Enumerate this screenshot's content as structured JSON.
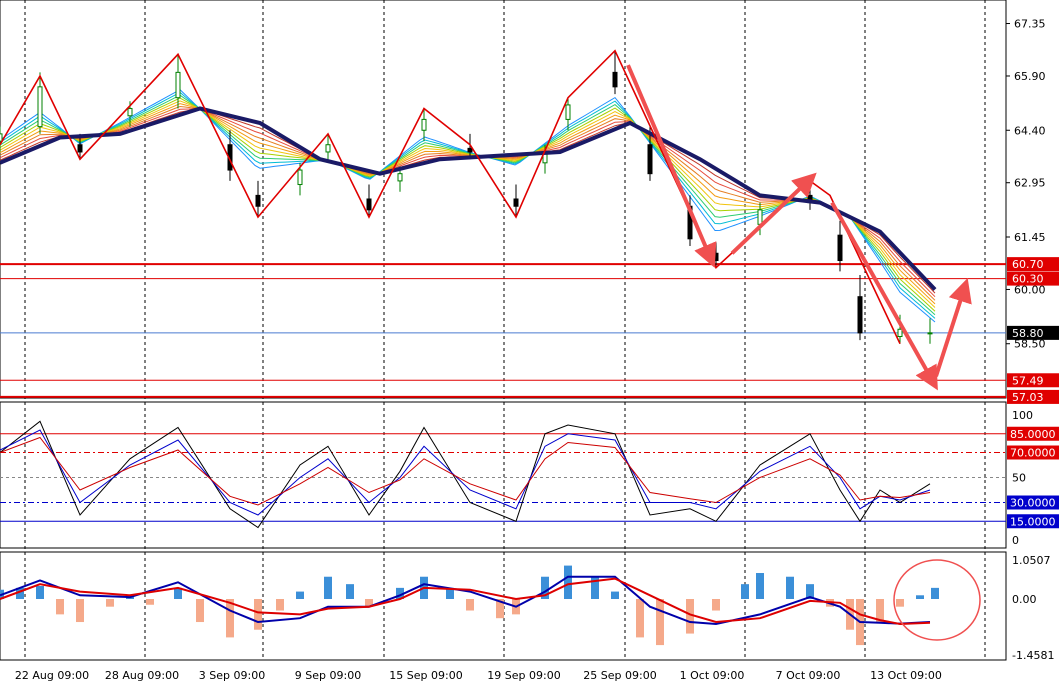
{
  "chart_data": [
    {
      "type": "candlestick",
      "panel": "price",
      "title": "",
      "ylim": [
        57.0,
        68.0
      ],
      "y_ticks": [
        "67.35",
        "65.90",
        "64.40",
        "62.95",
        "61.45",
        "60.00",
        "58.50"
      ],
      "x_labels": [
        "22 Aug 09:00",
        "28 Aug 09:00",
        "3 Sep 09:00",
        "9 Sep 09:00",
        "15 Sep 09:00",
        "19 Sep 09:00",
        "25 Sep 09:00",
        "1 Oct 09:00",
        "7 Oct 09:00",
        "13 Oct 09:00"
      ],
      "current_price": {
        "value": 58.8,
        "label": "58.80"
      },
      "levels": [
        {
          "value": 60.7,
          "label": "60.70"
        },
        {
          "value": 60.3,
          "label": "60.30"
        },
        {
          "value": 57.49,
          "label": "57.49"
        },
        {
          "value": 57.03,
          "label": "57.03"
        }
      ],
      "zigzag": [
        [
          0,
          64.0
        ],
        [
          40,
          65.9
        ],
        [
          80,
          63.6
        ],
        [
          178,
          66.5
        ],
        [
          258,
          62.0
        ],
        [
          328,
          64.3
        ],
        [
          369,
          62.0
        ],
        [
          424,
          65.0
        ],
        [
          470,
          64.0
        ],
        [
          516,
          62.0
        ],
        [
          568,
          65.3
        ],
        [
          615,
          66.6
        ],
        [
          716,
          60.6
        ],
        [
          810,
          63.0
        ],
        [
          830,
          62.6
        ],
        [
          900,
          58.5
        ]
      ],
      "slow_ma": [
        [
          0,
          63.5
        ],
        [
          60,
          64.2
        ],
        [
          120,
          64.3
        ],
        [
          200,
          65.0
        ],
        [
          260,
          64.6
        ],
        [
          320,
          63.6
        ],
        [
          380,
          63.2
        ],
        [
          440,
          63.6
        ],
        [
          500,
          63.7
        ],
        [
          560,
          63.8
        ],
        [
          630,
          64.6
        ],
        [
          700,
          63.6
        ],
        [
          760,
          62.6
        ],
        [
          820,
          62.4
        ],
        [
          880,
          61.6
        ],
        [
          935,
          60.0
        ]
      ],
      "fast_ma": [
        [
          0,
          64.2
        ],
        [
          40,
          65.0
        ],
        [
          80,
          64.0
        ],
        [
          180,
          65.6
        ],
        [
          258,
          63.2
        ],
        [
          328,
          63.6
        ],
        [
          369,
          63.0
        ],
        [
          424,
          64.3
        ],
        [
          470,
          63.8
        ],
        [
          516,
          63.4
        ],
        [
          568,
          64.6
        ],
        [
          615,
          65.4
        ],
        [
          716,
          61.4
        ],
        [
          810,
          62.6
        ],
        [
          850,
          62.0
        ],
        [
          900,
          59.8
        ],
        [
          935,
          59.0
        ]
      ],
      "candles": [
        [
          0,
          64.1,
          64.5,
          63.8,
          64.3
        ],
        [
          40,
          64.5,
          66.0,
          64.3,
          65.6
        ],
        [
          80,
          64.0,
          64.3,
          63.6,
          63.8
        ],
        [
          130,
          64.8,
          65.2,
          64.5,
          65.0
        ],
        [
          178,
          65.3,
          66.5,
          65.0,
          66.0
        ],
        [
          230,
          64.0,
          64.4,
          63.0,
          63.3
        ],
        [
          258,
          62.6,
          63.0,
          62.0,
          62.3
        ],
        [
          300,
          62.9,
          63.5,
          62.6,
          63.3
        ],
        [
          328,
          63.8,
          64.3,
          63.5,
          64.0
        ],
        [
          369,
          62.5,
          62.9,
          62.0,
          62.2
        ],
        [
          400,
          63.0,
          63.4,
          62.7,
          63.2
        ],
        [
          424,
          64.4,
          65.0,
          64.1,
          64.7
        ],
        [
          470,
          63.9,
          64.3,
          63.6,
          63.8
        ],
        [
          516,
          62.5,
          62.9,
          62.0,
          62.3
        ],
        [
          545,
          63.5,
          64.0,
          63.2,
          63.8
        ],
        [
          568,
          64.7,
          65.3,
          64.4,
          65.1
        ],
        [
          615,
          66.0,
          66.6,
          65.4,
          65.6
        ],
        [
          650,
          64.0,
          64.5,
          63.0,
          63.2
        ],
        [
          690,
          62.3,
          62.6,
          61.2,
          61.4
        ],
        [
          716,
          61.0,
          61.3,
          60.6,
          60.8
        ],
        [
          760,
          61.8,
          62.4,
          61.5,
          62.2
        ],
        [
          810,
          62.6,
          63.0,
          62.2,
          62.4
        ],
        [
          840,
          61.5,
          61.9,
          60.5,
          60.8
        ],
        [
          860,
          59.8,
          60.4,
          58.6,
          58.8
        ],
        [
          900,
          58.7,
          59.3,
          58.5,
          58.9
        ],
        [
          930,
          58.8,
          59.2,
          58.5,
          58.8
        ]
      ],
      "arrows": [
        {
          "from": [
            628,
            66.2
          ],
          "to": [
            710,
            60.9
          ]
        },
        {
          "from": [
            732,
            61.0
          ],
          "to": [
            808,
            63.0
          ]
        },
        {
          "from": [
            832,
            62.4
          ],
          "to": [
            932,
            57.5
          ]
        },
        {
          "from": [
            936,
            57.6
          ],
          "to": [
            964,
            60.0
          ]
        }
      ]
    },
    {
      "type": "line",
      "panel": "stochastic",
      "ylim": [
        0,
        100
      ],
      "y_ticks": [
        "100",
        "50",
        "0"
      ],
      "levels": [
        {
          "value": 85,
          "label": "85.0000"
        },
        {
          "value": 70,
          "label": "70.0000"
        },
        {
          "value": 30,
          "label": "30.0000"
        },
        {
          "value": 15,
          "label": "15.0000"
        }
      ],
      "series": [
        {
          "color": "#000000",
          "points": [
            [
              0,
              70
            ],
            [
              40,
              95
            ],
            [
              80,
              20
            ],
            [
              130,
              65
            ],
            [
              178,
              90
            ],
            [
              230,
              25
            ],
            [
              258,
              10
            ],
            [
              300,
              60
            ],
            [
              328,
              75
            ],
            [
              369,
              20
            ],
            [
              400,
              55
            ],
            [
              424,
              90
            ],
            [
              470,
              30
            ],
            [
              516,
              15
            ],
            [
              545,
              85
            ],
            [
              568,
              92
            ],
            [
              615,
              85
            ],
            [
              650,
              20
            ],
            [
              690,
              25
            ],
            [
              716,
              15
            ],
            [
              760,
              60
            ],
            [
              810,
              85
            ],
            [
              840,
              40
            ],
            [
              860,
              15
            ],
            [
              880,
              40
            ],
            [
              900,
              30
            ],
            [
              930,
              45
            ]
          ]
        },
        {
          "color": "#0000cc",
          "points": [
            [
              0,
              72
            ],
            [
              40,
              88
            ],
            [
              80,
              30
            ],
            [
              130,
              60
            ],
            [
              178,
              80
            ],
            [
              230,
              30
            ],
            [
              258,
              20
            ],
            [
              300,
              50
            ],
            [
              328,
              65
            ],
            [
              369,
              30
            ],
            [
              400,
              50
            ],
            [
              424,
              75
            ],
            [
              470,
              40
            ],
            [
              516,
              25
            ],
            [
              545,
              75
            ],
            [
              568,
              85
            ],
            [
              615,
              80
            ],
            [
              650,
              30
            ],
            [
              690,
              30
            ],
            [
              716,
              25
            ],
            [
              760,
              55
            ],
            [
              810,
              75
            ],
            [
              840,
              50
            ],
            [
              860,
              25
            ],
            [
              880,
              35
            ],
            [
              900,
              32
            ],
            [
              930,
              40
            ]
          ]
        },
        {
          "color": "#cc0000",
          "points": [
            [
              0,
              70
            ],
            [
              40,
              82
            ],
            [
              80,
              40
            ],
            [
              130,
              58
            ],
            [
              178,
              72
            ],
            [
              230,
              35
            ],
            [
              258,
              28
            ],
            [
              300,
              45
            ],
            [
              328,
              58
            ],
            [
              369,
              38
            ],
            [
              400,
              48
            ],
            [
              424,
              65
            ],
            [
              470,
              45
            ],
            [
              516,
              32
            ],
            [
              545,
              65
            ],
            [
              568,
              78
            ],
            [
              615,
              74
            ],
            [
              650,
              38
            ],
            [
              690,
              33
            ],
            [
              716,
              30
            ],
            [
              760,
              50
            ],
            [
              810,
              65
            ],
            [
              840,
              52
            ],
            [
              860,
              32
            ],
            [
              880,
              35
            ],
            [
              900,
              34
            ],
            [
              930,
              38
            ]
          ]
        }
      ]
    },
    {
      "type": "bar",
      "panel": "macd",
      "ylim": [
        -1.4581,
        1.0507
      ],
      "y_ticks": [
        "1.0507",
        "0.00",
        "-1.4581"
      ],
      "histogram": [
        [
          0,
          0.25
        ],
        [
          20,
          0.3
        ],
        [
          40,
          0.35
        ],
        [
          60,
          -0.4
        ],
        [
          80,
          -0.6
        ],
        [
          110,
          -0.2
        ],
        [
          130,
          0.1
        ],
        [
          150,
          -0.15
        ],
        [
          178,
          0.3
        ],
        [
          200,
          -0.6
        ],
        [
          230,
          -1.0
        ],
        [
          258,
          -0.8
        ],
        [
          280,
          -0.3
        ],
        [
          300,
          0.2
        ],
        [
          328,
          0.6
        ],
        [
          350,
          0.4
        ],
        [
          369,
          -0.2
        ],
        [
          400,
          0.3
        ],
        [
          424,
          0.6
        ],
        [
          450,
          0.3
        ],
        [
          470,
          -0.3
        ],
        [
          500,
          -0.5
        ],
        [
          516,
          -0.4
        ],
        [
          545,
          0.6
        ],
        [
          568,
          0.9
        ],
        [
          595,
          0.6
        ],
        [
          615,
          0.2
        ],
        [
          640,
          -1.0
        ],
        [
          660,
          -1.2
        ],
        [
          690,
          -0.9
        ],
        [
          716,
          -0.3
        ],
        [
          745,
          0.4
        ],
        [
          760,
          0.7
        ],
        [
          790,
          0.6
        ],
        [
          810,
          0.4
        ],
        [
          830,
          -0.2
        ],
        [
          850,
          -0.8
        ],
        [
          860,
          -1.2
        ],
        [
          880,
          -0.6
        ],
        [
          900,
          -0.2
        ],
        [
          920,
          0.1
        ],
        [
          935,
          0.3
        ]
      ],
      "series": [
        {
          "color": "#0000aa",
          "points": [
            [
              0,
              0.1
            ],
            [
              40,
              0.5
            ],
            [
              80,
              0.1
            ],
            [
              130,
              0.05
            ],
            [
              178,
              0.45
            ],
            [
              230,
              -0.3
            ],
            [
              258,
              -0.6
            ],
            [
              300,
              -0.5
            ],
            [
              328,
              -0.2
            ],
            [
              369,
              -0.2
            ],
            [
              400,
              0.1
            ],
            [
              424,
              0.4
            ],
            [
              470,
              0.2
            ],
            [
              516,
              -0.2
            ],
            [
              545,
              0.2
            ],
            [
              568,
              0.6
            ],
            [
              615,
              0.6
            ],
            [
              650,
              -0.2
            ],
            [
              690,
              -0.6
            ],
            [
              716,
              -0.65
            ],
            [
              760,
              -0.4
            ],
            [
              810,
              0.05
            ],
            [
              840,
              -0.2
            ],
            [
              860,
              -0.6
            ],
            [
              880,
              -0.62
            ],
            [
              900,
              -0.64
            ],
            [
              930,
              -0.6
            ]
          ]
        },
        {
          "color": "#dd0000",
          "points": [
            [
              0,
              0.0
            ],
            [
              40,
              0.4
            ],
            [
              80,
              0.2
            ],
            [
              130,
              0.1
            ],
            [
              178,
              0.3
            ],
            [
              230,
              -0.1
            ],
            [
              258,
              -0.35
            ],
            [
              300,
              -0.4
            ],
            [
              328,
              -0.25
            ],
            [
              369,
              -0.2
            ],
            [
              400,
              0.0
            ],
            [
              424,
              0.3
            ],
            [
              470,
              0.25
            ],
            [
              516,
              0.0
            ],
            [
              545,
              0.1
            ],
            [
              568,
              0.4
            ],
            [
              615,
              0.55
            ],
            [
              650,
              0.1
            ],
            [
              690,
              -0.4
            ],
            [
              716,
              -0.6
            ],
            [
              760,
              -0.5
            ],
            [
              810,
              -0.05
            ],
            [
              840,
              -0.1
            ],
            [
              860,
              -0.4
            ],
            [
              880,
              -0.55
            ],
            [
              900,
              -0.65
            ],
            [
              930,
              -0.62
            ]
          ]
        }
      ]
    }
  ]
}
